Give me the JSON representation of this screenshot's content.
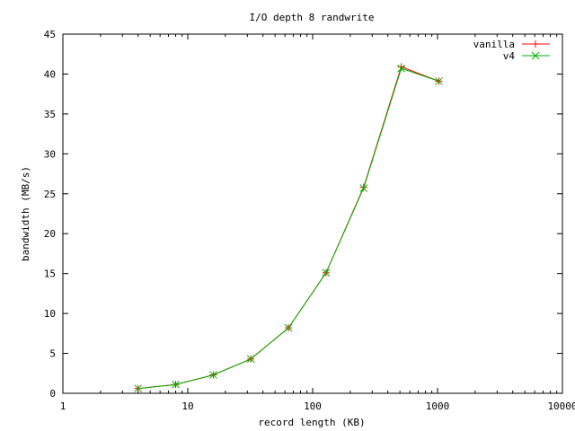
{
  "chart_data": {
    "type": "line",
    "title": "I/O depth 8 randwrite",
    "xlabel": "record length (KB)",
    "ylabel": "bandwidth (MB/s)",
    "x_scale": "log",
    "xlim": [
      1,
      10000
    ],
    "ylim": [
      0,
      45
    ],
    "x_ticks": [
      1,
      10,
      100,
      1000,
      10000
    ],
    "x_tick_labels": [
      "1",
      "10",
      "100",
      "1000",
      "10000"
    ],
    "y_ticks": [
      0,
      5,
      10,
      15,
      20,
      25,
      30,
      35,
      40,
      45
    ],
    "y_tick_labels": [
      "0",
      "5",
      "10",
      "15",
      "20",
      "25",
      "30",
      "35",
      "40",
      "45"
    ],
    "grid": false,
    "legend_position": "top-right",
    "x": [
      4,
      8,
      16,
      32,
      64,
      128,
      256,
      512,
      1024
    ],
    "series": [
      {
        "name": "vanilla",
        "color": "#ff0000",
        "marker": "plus",
        "values": [
          0.6,
          1.1,
          2.3,
          4.3,
          8.2,
          15.1,
          25.8,
          40.9,
          39.1
        ]
      },
      {
        "name": "v4",
        "color": "#00b000",
        "marker": "cross",
        "values": [
          0.6,
          1.1,
          2.3,
          4.3,
          8.2,
          15.1,
          25.7,
          40.7,
          39.1
        ]
      }
    ]
  }
}
